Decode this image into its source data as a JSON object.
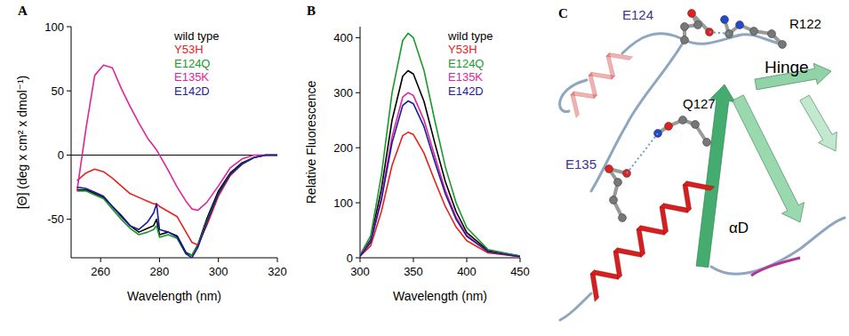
{
  "chart_data": [
    {
      "type": "line",
      "title": "A",
      "x_label": "Wavelength (nm)",
      "y_label": "[Θ] (deg x cm² x dmol⁻¹)",
      "x": [
        252,
        255,
        258,
        261,
        264,
        267,
        270,
        273,
        276,
        278,
        279,
        280,
        283,
        286,
        289,
        291,
        293,
        296,
        300,
        304,
        308,
        312,
        316,
        320
      ],
      "xlim": [
        250,
        320
      ],
      "xticks": [
        260,
        280,
        300,
        320
      ],
      "ylim": [
        -80,
        100
      ],
      "yticks": [
        -50,
        0,
        50,
        100
      ],
      "legend": "top-right",
      "series": [
        {
          "name": "wild type",
          "color": "#000000",
          "values": [
            -27,
            -27,
            -30,
            -33,
            -40,
            -47,
            -55,
            -60,
            -57,
            -55,
            -50,
            -62,
            -60,
            -63,
            -76,
            -78,
            -70,
            -50,
            -28,
            -14,
            -6,
            -2,
            0,
            0
          ]
        },
        {
          "name": "Y53H",
          "color": "#e8211c",
          "values": [
            -20,
            -14,
            -11,
            -13,
            -18,
            -24,
            -30,
            -33,
            -36,
            -38,
            -38,
            -40,
            -44,
            -48,
            -60,
            -68,
            -70,
            -55,
            -32,
            -16,
            -7,
            -2,
            0,
            0
          ]
        },
        {
          "name": "E124Q",
          "color": "#1a9a2a",
          "values": [
            -28,
            -28,
            -31,
            -34,
            -42,
            -50,
            -57,
            -62,
            -60,
            -58,
            -55,
            -64,
            -62,
            -65,
            -77,
            -78,
            -71,
            -52,
            -30,
            -15,
            -7,
            -2,
            0,
            0
          ]
        },
        {
          "name": "E135K",
          "color": "#e0249a",
          "values": [
            -28,
            20,
            62,
            70,
            68,
            52,
            38,
            25,
            13,
            7,
            4,
            0,
            -12,
            -25,
            -36,
            -42,
            -43,
            -37,
            -24,
            -10,
            -3,
            0,
            0,
            0
          ]
        },
        {
          "name": "E142D",
          "color": "#1c1c9e",
          "values": [
            -25,
            -26,
            -29,
            -32,
            -40,
            -48,
            -55,
            -58,
            -52,
            -45,
            -38,
            -58,
            -60,
            -64,
            -77,
            -80,
            -72,
            -53,
            -30,
            -15,
            -7,
            -2,
            0,
            0
          ]
        }
      ]
    },
    {
      "type": "line",
      "title": "B",
      "x_label": "Wavelength (nm)",
      "y_label": "Relative Fluorescence",
      "x": [
        300,
        310,
        320,
        330,
        340,
        345,
        350,
        360,
        370,
        380,
        390,
        400,
        420,
        450
      ],
      "xlim": [
        300,
        450
      ],
      "xticks": [
        300,
        350,
        400,
        450
      ],
      "ylim": [
        0,
        420
      ],
      "yticks": [
        0,
        100,
        200,
        300,
        400
      ],
      "legend": "top-right",
      "series": [
        {
          "name": "wild type",
          "color": "#000000",
          "values": [
            4,
            33,
            125,
            250,
            330,
            340,
            334,
            284,
            209,
            138,
            84,
            46,
            13,
            3
          ]
        },
        {
          "name": "Y53H",
          "color": "#e8211c",
          "values": [
            3,
            22,
            84,
            168,
            222,
            228,
            224,
            190,
            140,
            93,
            56,
            31,
            9,
            2
          ]
        },
        {
          "name": "E124Q",
          "color": "#1a9a2a",
          "values": [
            5,
            40,
            150,
            300,
            395,
            408,
            400,
            340,
            250,
            165,
            100,
            55,
            15,
            3
          ]
        },
        {
          "name": "E135K",
          "color": "#e0249a",
          "values": [
            4,
            30,
            110,
            220,
            292,
            300,
            295,
            250,
            185,
            122,
            74,
            41,
            11,
            2
          ]
        },
        {
          "name": "E142D",
          "color": "#1c1c9e",
          "values": [
            3,
            28,
            105,
            209,
            277,
            285,
            280,
            238,
            175,
            116,
            70,
            39,
            11,
            2
          ]
        }
      ]
    }
  ],
  "structure": {
    "letter": "C",
    "labels": [
      {
        "text": "E124",
        "color": "#3b3590"
      },
      {
        "text": "R122",
        "color": "#000000"
      },
      {
        "text": "Hinge",
        "color": "#000000"
      },
      {
        "text": "Q127",
        "color": "#000000"
      },
      {
        "text": "E135",
        "color": "#3b3590"
      },
      {
        "text": "αD",
        "color": "#000000"
      }
    ]
  }
}
